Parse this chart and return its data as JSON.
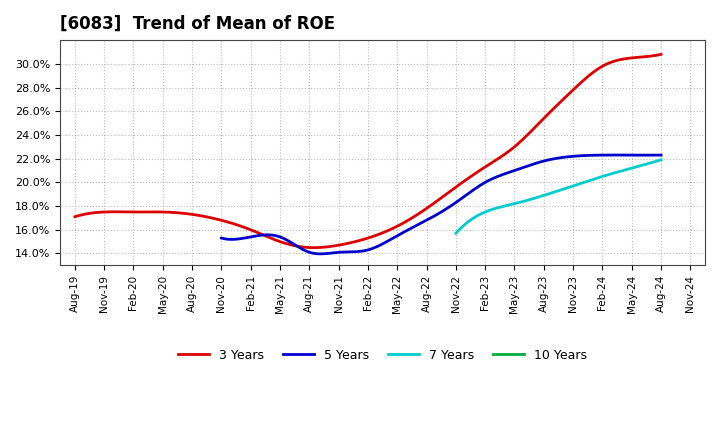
{
  "title": "[6083]  Trend of Mean of ROE",
  "background_color": "#ffffff",
  "plot_bg_color": "#ffffff",
  "grid_color": "#aaaaaa",
  "x_labels": [
    "Aug-19",
    "Nov-19",
    "Feb-20",
    "May-20",
    "Aug-20",
    "Nov-20",
    "Feb-21",
    "May-21",
    "Aug-21",
    "Nov-21",
    "Feb-22",
    "May-22",
    "Aug-22",
    "Nov-22",
    "Feb-23",
    "May-23",
    "Aug-23",
    "Nov-23",
    "Feb-24",
    "May-24",
    "Aug-24",
    "Nov-24"
  ],
  "ylim": [
    0.13,
    0.32
  ],
  "yticks": [
    0.14,
    0.16,
    0.18,
    0.2,
    0.22,
    0.24,
    0.26,
    0.28,
    0.3
  ],
  "series": {
    "3 Years": {
      "color": "#dd0000",
      "x_indices": [
        0,
        1,
        2,
        3,
        4,
        5,
        6,
        7,
        8,
        9,
        10,
        11,
        12,
        13,
        14,
        15,
        16,
        17,
        18,
        19,
        20
      ],
      "values": [
        0.171,
        0.175,
        0.175,
        0.175,
        0.173,
        0.168,
        0.16,
        0.15,
        0.145,
        0.147,
        0.153,
        0.163,
        0.178,
        0.196,
        0.213,
        0.23,
        0.254,
        0.278,
        0.298,
        0.305,
        0.308
      ]
    },
    "5 Years": {
      "color": "#0000cc",
      "x_indices": [
        0,
        1,
        2,
        3,
        4,
        5,
        6,
        7,
        8,
        9,
        10,
        11,
        12,
        13,
        14,
        15,
        16,
        17,
        18,
        19,
        20
      ],
      "values": [
        null,
        null,
        null,
        null,
        null,
        0.153,
        0.154,
        0.154,
        0.141,
        0.141,
        0.143,
        0.155,
        0.168,
        0.183,
        0.2,
        0.21,
        0.218,
        0.222,
        0.223,
        0.223,
        0.223
      ]
    },
    "7 Years": {
      "color": "#00cccc",
      "x_indices": [
        0,
        1,
        2,
        3,
        4,
        5,
        6,
        7,
        8,
        9,
        10,
        11,
        12,
        13,
        14,
        15,
        16,
        17,
        18,
        19,
        20
      ],
      "values": [
        null,
        null,
        null,
        null,
        null,
        null,
        null,
        null,
        null,
        null,
        null,
        null,
        null,
        0.157,
        0.175,
        0.182,
        0.189,
        0.197,
        0.205,
        0.212,
        0.219
      ]
    },
    "10 Years": {
      "color": "#00aa44",
      "x_indices": [
        0,
        1,
        2,
        3,
        4,
        5,
        6,
        7,
        8,
        9,
        10,
        11,
        12,
        13,
        14,
        15,
        16,
        17,
        18,
        19,
        20
      ],
      "values": [
        null,
        null,
        null,
        null,
        null,
        null,
        null,
        null,
        null,
        null,
        null,
        null,
        null,
        null,
        null,
        null,
        null,
        null,
        null,
        null,
        null
      ]
    }
  },
  "legend_entries": [
    "3 Years",
    "5 Years",
    "7 Years",
    "10 Years"
  ],
  "legend_colors": [
    "#dd0000",
    "#0000cc",
    "#00cccc",
    "#00aa44"
  ]
}
